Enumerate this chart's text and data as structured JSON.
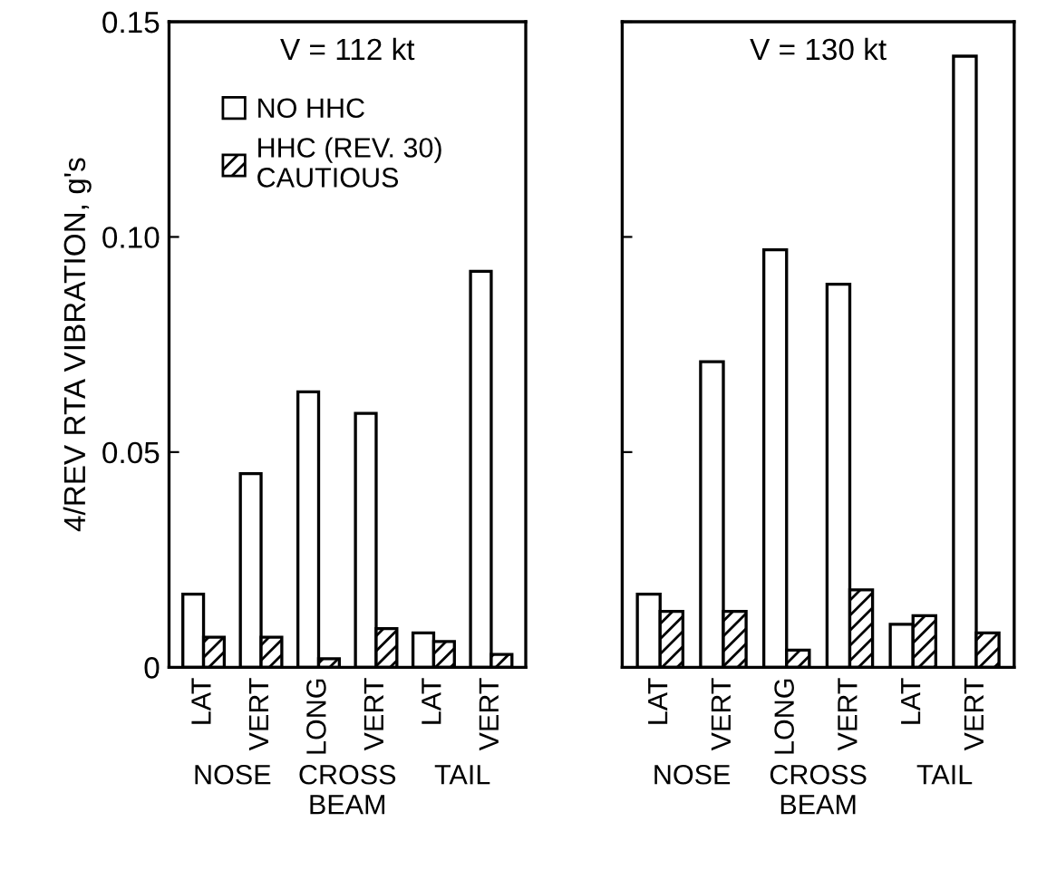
{
  "chart_data": [
    {
      "type": "bar",
      "title": "V = 112 kt",
      "ylabel": "4/REV RTA VIBRATION, g's",
      "categories": [
        "LAT",
        "VERT",
        "LONG",
        "VERT",
        "LAT",
        "VERT"
      ],
      "series": [
        {
          "name": "NO HHC",
          "color": "#ffffff",
          "values": [
            0.017,
            0.045,
            0.064,
            0.059,
            0.008,
            0.092
          ]
        },
        {
          "name": "HHC (REV. 30)\nCAUTIOUS",
          "color": "#000000",
          "values": [
            0.007,
            0.007,
            0.002,
            0.009,
            0.006,
            0.003
          ]
        }
      ],
      "ylim": [
        0,
        0.15
      ],
      "yticks": [
        0,
        {
          "value": 0.05,
          "label": "0.05"
        },
        {
          "value": 0.1,
          "label": "0.10"
        },
        0.15
      ],
      "annotations": [
        "NOSE",
        "CROSS\nBEAM",
        "TAIL"
      ],
      "legend": "top left",
      "grid": false
    },
    {
      "type": "bar",
      "title": "V = 130 kt",
      "categories": [
        "LAT",
        "VERT",
        "LONG",
        "VERT",
        "LAT",
        "VERT"
      ],
      "series": [
        {
          "color": "#ffffff",
          "values": [
            0.017,
            0.071,
            0.097,
            0.089,
            0.01,
            0.142
          ]
        },
        {
          "color": "#000000",
          "values": [
            0.013,
            0.013,
            0.004,
            0.018,
            0.012,
            0.008
          ]
        }
      ],
      "ylim": [
        0,
        0.15
      ],
      "yticks": [
        {
          "value": 0,
          "label": null
        },
        {
          "value": 0.05,
          "label": null
        },
        {
          "value": 0.1,
          "label": null
        },
        {
          "value": 0.15,
          "label": null
        }
      ],
      "annotations": [
        "NOSE",
        "CROSS\nBEAM",
        "TAIL"
      ],
      "tick_labels": "x",
      "grid": false
    }
  ]
}
